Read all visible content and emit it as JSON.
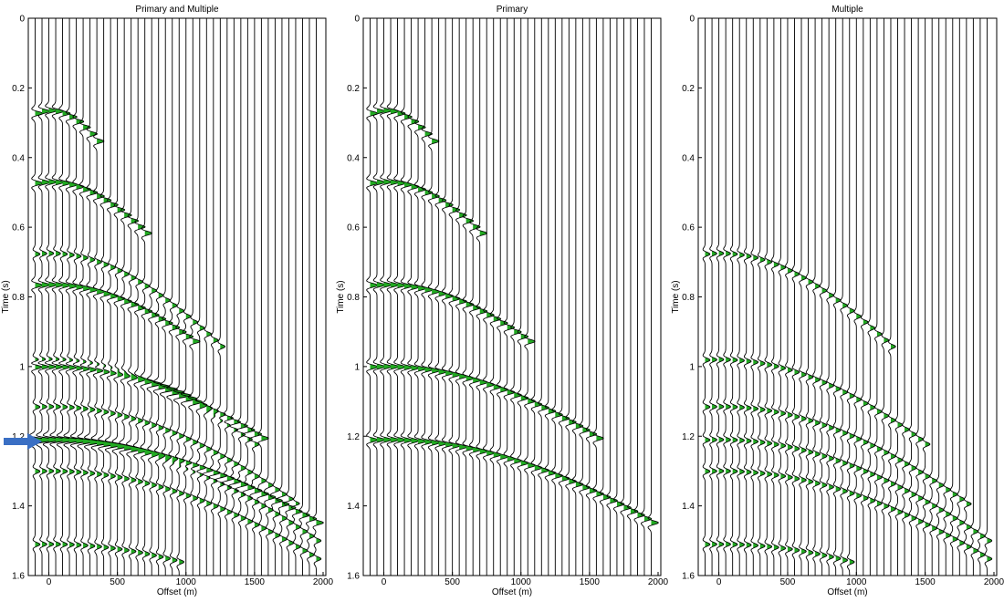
{
  "chart_data": [
    {
      "type": "seismic-wiggle",
      "title": "Primary and Multiple",
      "xlabel": "Offset (m)",
      "ylabel": "Time (s)",
      "xlim": [
        -150,
        2020
      ],
      "ylim": [
        1.6,
        0
      ],
      "xticks": [
        0,
        500,
        1000,
        1500,
        2000
      ],
      "yticks": [
        0,
        0.2,
        0.4,
        0.6,
        0.8,
        1,
        1.2,
        1.4,
        1.6
      ],
      "trace_offsets": {
        "start": -100,
        "step": 50,
        "count": 42
      },
      "events": [
        {
          "kind": "primary",
          "t0": 0.265,
          "v": 1500,
          "max_offset": 350
        },
        {
          "kind": "primary",
          "t0": 0.47,
          "v": 1750,
          "max_offset": 700
        },
        {
          "kind": "primary",
          "t0": 0.765,
          "v": 2000,
          "max_offset": 1050
        },
        {
          "kind": "primary",
          "t0": 1.0,
          "v": 2300,
          "max_offset": 1550
        },
        {
          "kind": "primary",
          "t0": 1.21,
          "v": 2450,
          "max_offset": 2000
        },
        {
          "kind": "multiple",
          "t0": 0.675,
          "v": 1900,
          "max_offset": 1250
        },
        {
          "kind": "multiple",
          "t0": 0.98,
          "v": 2050,
          "max_offset": 1500
        },
        {
          "kind": "multiple",
          "t0": 1.115,
          "v": 2150,
          "max_offset": 1800
        },
        {
          "kind": "multiple",
          "t0": 1.21,
          "v": 2200,
          "max_offset": 2000
        },
        {
          "kind": "multiple",
          "t0": 1.3,
          "v": 2300,
          "max_offset": 2000
        },
        {
          "kind": "multiple",
          "t0": 1.51,
          "v": 2400,
          "max_offset": 950
        }
      ],
      "fill_color": "#22aa22",
      "wiggle_color": "#000000",
      "marker": {
        "kind": "blue-arrow",
        "time": 1.215,
        "color": "#3a6fc4"
      }
    },
    {
      "type": "seismic-wiggle",
      "title": "Primary",
      "xlabel": "Offset (m)",
      "ylabel": "Time (s)",
      "xlim": [
        -150,
        2020
      ],
      "ylim": [
        1.6,
        0
      ],
      "xticks": [
        0,
        500,
        1000,
        1500,
        2000
      ],
      "yticks": [
        0,
        0.2,
        0.4,
        0.6,
        0.8,
        1,
        1.2,
        1.4,
        1.6
      ],
      "trace_offsets": {
        "start": -100,
        "step": 50,
        "count": 42
      },
      "events": [
        {
          "kind": "primary",
          "t0": 0.265,
          "v": 1500,
          "max_offset": 350
        },
        {
          "kind": "primary",
          "t0": 0.47,
          "v": 1750,
          "max_offset": 700
        },
        {
          "kind": "primary",
          "t0": 0.765,
          "v": 2000,
          "max_offset": 1050
        },
        {
          "kind": "primary",
          "t0": 1.0,
          "v": 2300,
          "max_offset": 1550
        },
        {
          "kind": "primary",
          "t0": 1.21,
          "v": 2450,
          "max_offset": 2000
        }
      ],
      "fill_color": "#22aa22",
      "wiggle_color": "#000000"
    },
    {
      "type": "seismic-wiggle",
      "title": "Multiple",
      "xlabel": "Offset (m)",
      "ylabel": "Time (s)",
      "xlim": [
        -150,
        2020
      ],
      "ylim": [
        1.6,
        0
      ],
      "xticks": [
        0,
        500,
        1000,
        1500,
        2000
      ],
      "yticks": [
        0,
        0.2,
        0.4,
        0.6,
        0.8,
        1,
        1.2,
        1.4,
        1.6
      ],
      "trace_offsets": {
        "start": -100,
        "step": 50,
        "count": 42
      },
      "events": [
        {
          "kind": "multiple",
          "t0": 0.675,
          "v": 1900,
          "max_offset": 1250
        },
        {
          "kind": "multiple",
          "t0": 0.98,
          "v": 2050,
          "max_offset": 1500
        },
        {
          "kind": "multiple",
          "t0": 1.115,
          "v": 2150,
          "max_offset": 1800
        },
        {
          "kind": "multiple",
          "t0": 1.21,
          "v": 2200,
          "max_offset": 2000
        },
        {
          "kind": "multiple",
          "t0": 1.3,
          "v": 2300,
          "max_offset": 2000
        },
        {
          "kind": "multiple",
          "t0": 1.51,
          "v": 2400,
          "max_offset": 950
        }
      ],
      "fill_color": "#22aa22",
      "wiggle_color": "#000000"
    }
  ]
}
